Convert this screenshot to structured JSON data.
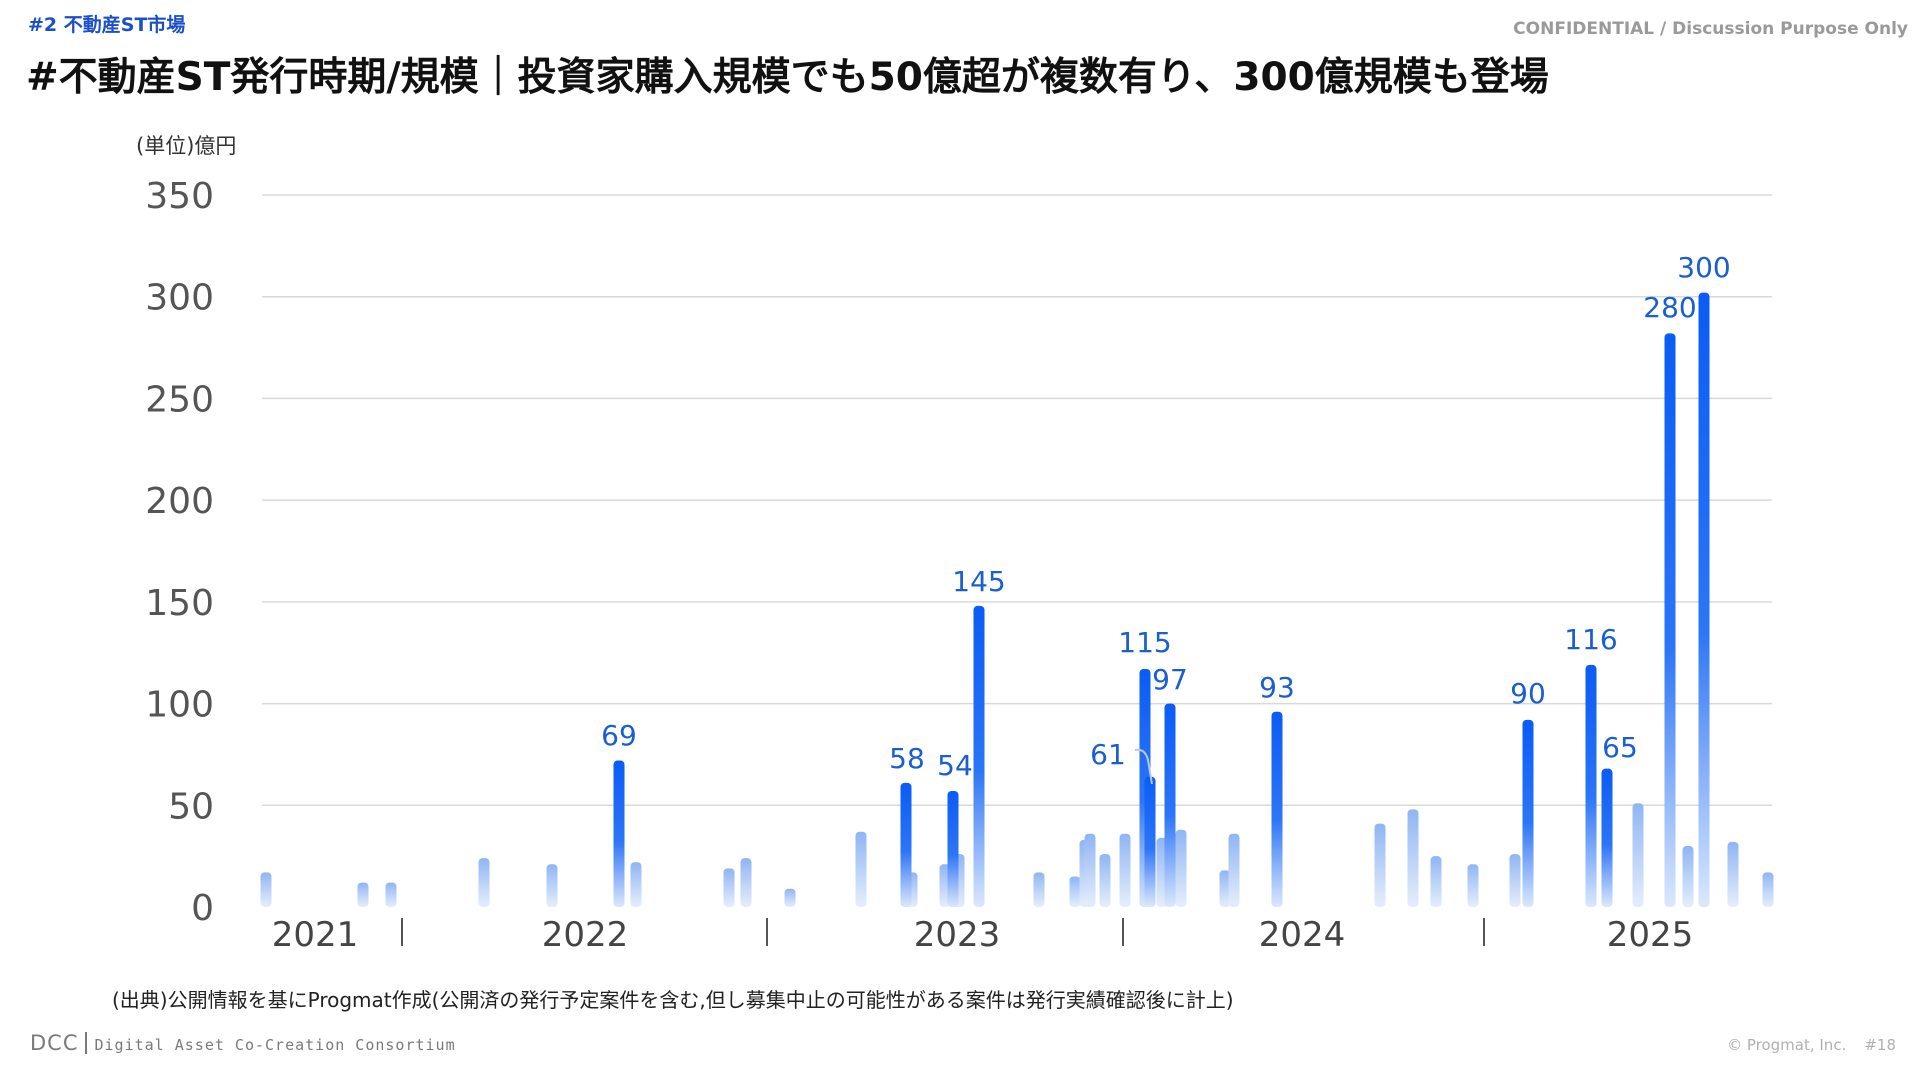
{
  "header": {
    "section": "#2 不動産ST市場",
    "confidential": "CONFIDENTIAL / Discussion Purpose Only",
    "title": "#不動産ST発行時期/規模｜投資家購入規模でも50億超が複数有り、300億規模も登場"
  },
  "footer": {
    "source": "(出典)公開情報を基にProgmat作成(公開済の発行予定案件を含む,但し募集中止の可能性がある案件は発行実績確認後に計上)",
    "logo_mark": "DCC",
    "logo_text": "Digital Asset Co-Creation Consortium",
    "copyright": "© Progmat, Inc.",
    "page": "#18"
  },
  "chart_data": {
    "type": "bar",
    "ylabel": "(単位)億円",
    "ylim": [
      0,
      350
    ],
    "yticks": [
      0,
      50,
      100,
      150,
      200,
      250,
      300,
      350
    ],
    "grid": true,
    "colors": {
      "highlight": "#0a5cf5",
      "minor": "#a9c6f5"
    },
    "year_labels": [
      "2021",
      "2022",
      "2023",
      "2024",
      "2025"
    ],
    "bars": [
      {
        "value": 17
      },
      {
        "value": 12
      },
      {
        "value": 12
      },
      {
        "value": 24
      },
      {
        "value": 21
      },
      {
        "value": 72,
        "label": "69",
        "highlight": true
      },
      {
        "value": 22
      },
      {
        "value": 19
      },
      {
        "value": 24
      },
      {
        "value": 9
      },
      {
        "value": 37
      },
      {
        "value": 61,
        "label": "58",
        "highlight": true
      },
      {
        "value": 17
      },
      {
        "value": 21
      },
      {
        "value": 57,
        "label": "54",
        "highlight": true
      },
      {
        "value": 26
      },
      {
        "value": 148,
        "label": "145",
        "highlight": true
      },
      {
        "value": 17
      },
      {
        "value": 15
      },
      {
        "value": 33
      },
      {
        "value": 36
      },
      {
        "value": 26
      },
      {
        "value": 36
      },
      {
        "value": 117,
        "label": "115",
        "highlight": true
      },
      {
        "value": 64,
        "label": "61",
        "highlight": true
      },
      {
        "value": 34
      },
      {
        "value": 100,
        "label": "97",
        "highlight": true
      },
      {
        "value": 38
      },
      {
        "value": 18
      },
      {
        "value": 36
      },
      {
        "value": 96,
        "label": "93",
        "highlight": true
      },
      {
        "value": 41
      },
      {
        "value": 48
      },
      {
        "value": 25
      },
      {
        "value": 21
      },
      {
        "value": 26
      },
      {
        "value": 92,
        "label": "90",
        "highlight": true
      },
      {
        "value": 119,
        "label": "116",
        "highlight": true
      },
      {
        "value": 68,
        "label": "65",
        "highlight": true
      },
      {
        "value": 51
      },
      {
        "value": 282,
        "label": "280",
        "highlight": true
      },
      {
        "value": 30
      },
      {
        "value": 302,
        "label": "300",
        "highlight": true
      },
      {
        "value": 32
      },
      {
        "value": 17
      }
    ]
  }
}
